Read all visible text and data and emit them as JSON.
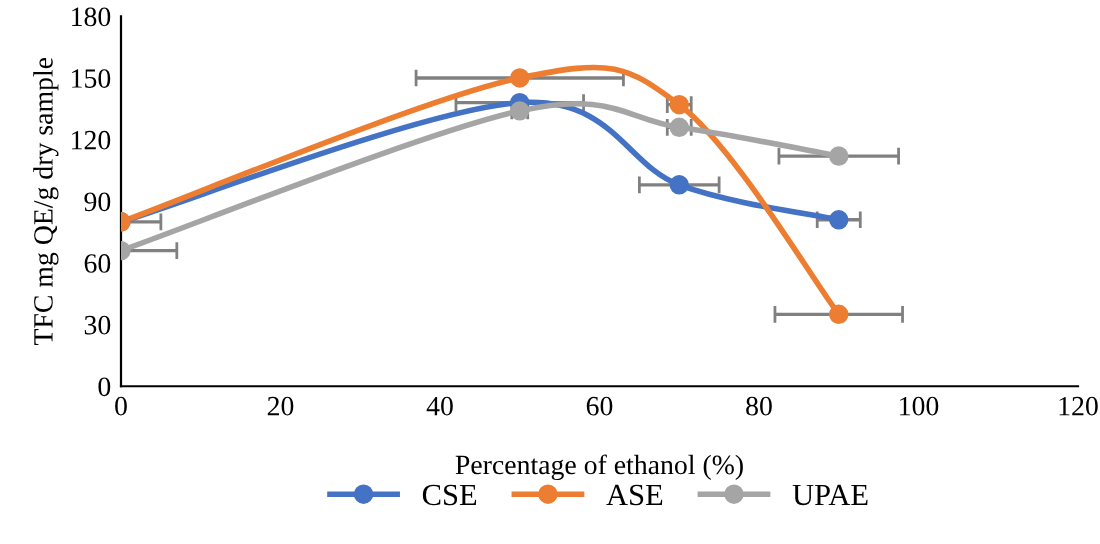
{
  "chart_data": {
    "type": "line",
    "xlabel": "Percentage of ethanol (%)",
    "ylabel": "TFC mg QE/g dry sample",
    "x": [
      0,
      50,
      70,
      90
    ],
    "series": [
      {
        "name": "CSE",
        "color": "#4472c4",
        "values": [
          80,
          138,
          98,
          81
        ],
        "xerrors": [
          [
            0,
            5
          ],
          8,
          5,
          2.7
        ]
      },
      {
        "name": "ASE",
        "color": "#ed7d31",
        "values": [
          80,
          150,
          137,
          35
        ],
        "xerrors": [
          null,
          13,
          1.5,
          8
        ]
      },
      {
        "name": "UPAE",
        "color": "#a5a5a5",
        "values": [
          66,
          134,
          126,
          112
        ],
        "xerrors": [
          [
            0,
            7
          ],
          1,
          1.5,
          7.5
        ]
      }
    ],
    "xlim": [
      0,
      120
    ],
    "xticks": [
      0,
      20,
      40,
      60,
      80,
      100,
      120
    ],
    "ylim": [
      0,
      180
    ],
    "yticks": [
      0,
      30,
      60,
      90,
      120,
      150,
      180
    ],
    "grid": false,
    "legend": "bottom",
    "marker": "circle",
    "line_style": "solid"
  }
}
